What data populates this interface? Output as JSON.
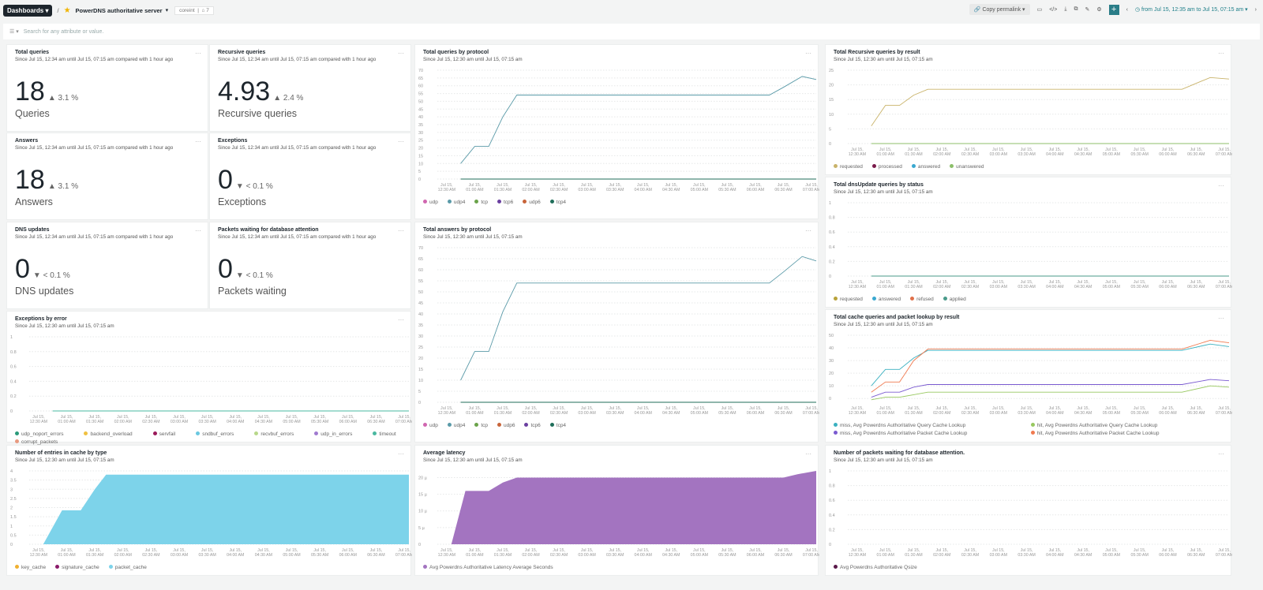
{
  "header": {
    "dashboards_label": "Dashboards",
    "separator": "/",
    "dashboard_title": "PowerDNS authoritative server",
    "account_tag": "coreint",
    "tag_count": "7",
    "copy_permalink": "Copy permalink",
    "time_range": "from Jul 15, 12:35 am to Jul 15, 07:15 am"
  },
  "filter": {
    "placeholder": "Search for any attribute or value."
  },
  "billboards": [
    {
      "title": "Total queries",
      "subtitle": "Since Jul 15, 12:34 am until Jul 15, 07:15 am compared with 1 hour ago",
      "value": "18",
      "delta": "3.1 %",
      "direction": "up",
      "label": "Queries"
    },
    {
      "title": "Recursive queries",
      "subtitle": "Since Jul 15, 12:34 am until Jul 15, 07:15 am compared with 1 hour ago",
      "value": "4.93",
      "delta": "2.4 %",
      "direction": "up",
      "label": "Recursive queries"
    },
    {
      "title": "Answers",
      "subtitle": "Since Jul 15, 12:34 am until Jul 15, 07:15 am compared with 1 hour ago",
      "value": "18",
      "delta": "3.1 %",
      "direction": "up",
      "label": "Answers"
    },
    {
      "title": "Exceptions",
      "subtitle": "Since Jul 15, 12:34 am until Jul 15, 07:15 am compared with 1 hour ago",
      "value": "0",
      "delta": "< 0.1 %",
      "direction": "down",
      "label": "Exceptions"
    },
    {
      "title": "DNS updates",
      "subtitle": "Since Jul 15, 12:34 am until Jul 15, 07:15 am compared with 1 hour ago",
      "value": "0",
      "delta": "< 0.1 %",
      "direction": "down",
      "label": "DNS updates"
    },
    {
      "title": "Packets waiting for database attention",
      "subtitle": "Since Jul 15, 12:34 am until Jul 15, 07:15 am compared with 1 hour ago",
      "value": "0",
      "delta": "< 0.1 %",
      "direction": "down",
      "label": "Packets waiting"
    }
  ],
  "time_axis": {
    "range": [
      "00:20",
      "07:05"
    ],
    "ticks": [
      "00:30",
      "01:00",
      "01:30",
      "02:00",
      "02:30",
      "03:00",
      "03:30",
      "04:00",
      "04:30",
      "05:00",
      "05:30",
      "06:00",
      "06:30",
      "07:00"
    ],
    "tick_labels": [
      "Jul 15, 12:30 AM",
      "Jul 15, 01:00 AM",
      "Jul 15, 01:30 AM",
      "Jul 15, 02:00 AM",
      "Jul 15, 02:30 AM",
      "Jul 15, 03:00 AM",
      "Jul 15, 03:30 AM",
      "Jul 15, 04:00 AM",
      "Jul 15, 04:30 AM",
      "Jul 15, 05:00 AM",
      "Jul 15, 05:30 AM",
      "Jul 15, 06:00 AM",
      "Jul 15, 06:30 AM",
      "Jul 15, 07:00 AM"
    ]
  },
  "chart_data": [
    {
      "id": "queries-protocol",
      "type": "line",
      "title": "Total queries by protocol",
      "subtitle": "Since Jul 15, 12:30 am until Jul 15, 07:15 am",
      "ylim": [
        0,
        70
      ],
      "yticks": [
        "0",
        "5",
        "10",
        "15",
        "20",
        "25",
        "30",
        "35",
        "40",
        "45",
        "50",
        "55",
        "60",
        "65",
        "70"
      ],
      "ytick_values": [
        0,
        5,
        10,
        15,
        20,
        25,
        30,
        35,
        40,
        45,
        50,
        55,
        60,
        65,
        70
      ],
      "series": [
        {
          "name": "udp",
          "color": "#d066b0",
          "points": []
        },
        {
          "name": "udp4",
          "color": "#5a9aa8",
          "points": [
            [
              "00:45",
              10
            ],
            [
              "01:00",
              21
            ],
            [
              "01:15",
              21
            ],
            [
              "01:30",
              40
            ],
            [
              "01:45",
              54
            ],
            [
              "06:15",
              54
            ],
            [
              "06:30",
              59
            ],
            [
              "06:50",
              66
            ],
            [
              "07:05",
              64
            ]
          ]
        },
        {
          "name": "tcp",
          "color": "#6aa34a",
          "points": []
        },
        {
          "name": "tcp6",
          "color": "#6a3fa0",
          "points": []
        },
        {
          "name": "udp6",
          "color": "#c8643a",
          "points": []
        },
        {
          "name": "tcp4",
          "color": "#1f6e5a",
          "points": [
            [
              "00:45",
              0
            ],
            [
              "07:05",
              0
            ]
          ]
        }
      ]
    },
    {
      "id": "recursive-result",
      "type": "line",
      "title": "Total Recursive queries by result",
      "subtitle": "Since Jul 15, 12:30 am until Jul 15, 07:15 am",
      "ylim": [
        0,
        25
      ],
      "yticks": [
        "0",
        "5",
        "10",
        "15",
        "20",
        "25"
      ],
      "ytick_values": [
        0,
        5,
        10,
        15,
        20,
        25
      ],
      "series": [
        {
          "name": "requested",
          "color": "#c9b36a",
          "points": [
            [
              "00:45",
              6
            ],
            [
              "01:00",
              13
            ],
            [
              "01:15",
              13
            ],
            [
              "01:30",
              16.5
            ],
            [
              "01:45",
              18.5
            ],
            [
              "06:15",
              18.5
            ],
            [
              "06:30",
              20.5
            ],
            [
              "06:45",
              22.5
            ],
            [
              "07:05",
              22
            ]
          ]
        },
        {
          "name": "processed",
          "color": "#7a1a4a",
          "points": []
        },
        {
          "name": "answered",
          "color": "#3aa8d0",
          "points": []
        },
        {
          "name": "unanswered",
          "color": "#8cbf6a",
          "points": [
            [
              "00:45",
              0
            ],
            [
              "07:05",
              0
            ]
          ]
        }
      ]
    },
    {
      "id": "dnsupdate-status",
      "type": "line",
      "title": "Total dnsUpdate queries by status",
      "subtitle": "Since Jul 15, 12:30 am until Jul 15, 07:15 am",
      "ylim": [
        0,
        1
      ],
      "yticks": [
        "0",
        "0.2",
        "0.4",
        "0.6",
        "0.8",
        "1"
      ],
      "ytick_values": [
        0,
        0.2,
        0.4,
        0.6,
        0.8,
        1
      ],
      "series": [
        {
          "name": "requested",
          "color": "#b8a23a",
          "points": []
        },
        {
          "name": "answered",
          "color": "#3aa8d0",
          "points": []
        },
        {
          "name": "refused",
          "color": "#e0704a",
          "points": []
        },
        {
          "name": "applied",
          "color": "#4a9a8a",
          "points": [
            [
              "00:45",
              0
            ],
            [
              "07:05",
              0
            ]
          ]
        }
      ]
    },
    {
      "id": "answers-protocol",
      "type": "line",
      "title": "Total answers by protocol",
      "subtitle": "Since Jul 15, 12:30 am until Jul 15, 07:15 am",
      "ylim": [
        0,
        70
      ],
      "yticks": [
        "0",
        "5",
        "10",
        "15",
        "20",
        "25",
        "30",
        "35",
        "40",
        "45",
        "50",
        "55",
        "60",
        "65",
        "70"
      ],
      "ytick_values": [
        0,
        5,
        10,
        15,
        20,
        25,
        30,
        35,
        40,
        45,
        50,
        55,
        60,
        65,
        70
      ],
      "series": [
        {
          "name": "udp",
          "color": "#d066b0",
          "points": []
        },
        {
          "name": "udp4",
          "color": "#5a9aa8",
          "points": [
            [
              "00:45",
              10
            ],
            [
              "01:00",
              23
            ],
            [
              "01:15",
              23
            ],
            [
              "01:30",
              41
            ],
            [
              "01:45",
              54
            ],
            [
              "06:15",
              54
            ],
            [
              "06:30",
              59
            ],
            [
              "06:50",
              66
            ],
            [
              "07:05",
              64
            ]
          ]
        },
        {
          "name": "tcp",
          "color": "#6aa34a",
          "points": []
        },
        {
          "name": "udp6",
          "color": "#c8643a",
          "points": []
        },
        {
          "name": "tcp6",
          "color": "#6a3fa0",
          "points": []
        },
        {
          "name": "tcp4",
          "color": "#1f6e5a",
          "points": [
            [
              "00:45",
              0
            ],
            [
              "07:05",
              0
            ]
          ]
        }
      ]
    },
    {
      "id": "exceptions-error",
      "type": "line",
      "title": "Exceptions by error",
      "subtitle": "Since Jul 15, 12:30 am until Jul 15, 07:15 am",
      "ylim": [
        0,
        1
      ],
      "yticks": [
        "0",
        "0.2",
        "0.4",
        "0.6",
        "0.8",
        "1"
      ],
      "ytick_values": [
        0,
        0.2,
        0.4,
        0.6,
        0.8,
        1
      ],
      "series": [
        {
          "name": "udp_noport_errors",
          "color": "#2a9a7a",
          "points": []
        },
        {
          "name": "backend_overload",
          "color": "#f0c040",
          "points": []
        },
        {
          "name": "servfail",
          "color": "#9a1a5a",
          "points": []
        },
        {
          "name": "sndbuf_errors",
          "color": "#6ac8e0",
          "points": []
        },
        {
          "name": "recvbuf_errors",
          "color": "#b8d88a",
          "points": []
        },
        {
          "name": "udp_in_errors",
          "color": "#a07ad0",
          "points": []
        },
        {
          "name": "timeout",
          "color": "#4ab8a0",
          "points": [
            [
              "00:45",
              0
            ],
            [
              "07:05",
              0
            ]
          ]
        },
        {
          "name": "corrupt_packets",
          "color": "#e89a80",
          "points": []
        }
      ]
    },
    {
      "id": "cache-lookup",
      "type": "line",
      "title": "Total cache queries and packet lookup by result",
      "subtitle": "Since Jul 15, 12:30 am until Jul 15, 07:15 am",
      "ylim": [
        -3,
        50
      ],
      "yticks": [
        "0",
        "10",
        "20",
        "30",
        "40",
        "50"
      ],
      "ytick_values": [
        0,
        10,
        20,
        30,
        40,
        50
      ],
      "series": [
        {
          "name": "miss, Avg Powerdns Authoritative Query Cache Lookup",
          "color": "#3ab0c0",
          "points": [
            [
              "00:45",
              10
            ],
            [
              "01:00",
              23
            ],
            [
              "01:15",
              23
            ],
            [
              "01:30",
              32
            ],
            [
              "01:45",
              38
            ],
            [
              "06:15",
              38
            ],
            [
              "06:45",
              43
            ],
            [
              "07:05",
              41
            ]
          ]
        },
        {
          "name": "hit, Avg Powerdns Authoritative Query Cache Lookup",
          "color": "#98c860",
          "points": [
            [
              "00:45",
              -1
            ],
            [
              "01:00",
              1
            ],
            [
              "01:15",
              1
            ],
            [
              "01:30",
              3
            ],
            [
              "01:45",
              5
            ],
            [
              "06:15",
              5
            ],
            [
              "06:45",
              10
            ],
            [
              "07:05",
              9
            ]
          ]
        },
        {
          "name": "miss, Avg Powerdns Authoritative Packet Cache Lookup",
          "color": "#7a5ad0",
          "points": [
            [
              "00:45",
              1
            ],
            [
              "01:00",
              5
            ],
            [
              "01:15",
              5
            ],
            [
              "01:30",
              9
            ],
            [
              "01:45",
              11
            ],
            [
              "06:15",
              11
            ],
            [
              "06:45",
              15
            ],
            [
              "07:05",
              14
            ]
          ]
        },
        {
          "name": "hit, Avg Powerdns Authoritative Packet Cache Lookup",
          "color": "#f07a50",
          "points": [
            [
              "00:45",
              5
            ],
            [
              "01:00",
              13
            ],
            [
              "01:15",
              13
            ],
            [
              "01:30",
              30
            ],
            [
              "01:45",
              39
            ],
            [
              "06:15",
              39
            ],
            [
              "06:45",
              46
            ],
            [
              "07:05",
              44
            ]
          ]
        }
      ]
    },
    {
      "id": "cache-entries",
      "type": "area",
      "title": "Number of entries in cache by type",
      "subtitle": "Since Jul 15, 12:30 am until Jul 15, 07:15 am",
      "ylim": [
        0,
        4
      ],
      "yticks": [
        "0",
        "0.5",
        "1",
        "1.5",
        "2",
        "2.5",
        "3",
        "3.5",
        "4"
      ],
      "ytick_values": [
        0,
        0.5,
        1,
        1.5,
        2,
        2.5,
        3,
        3.5,
        4
      ],
      "series": [
        {
          "name": "key_cache",
          "color": "#f0b030",
          "points": []
        },
        {
          "name": "signature_cache",
          "color": "#8a1a6a",
          "points": []
        },
        {
          "name": "packet_cache",
          "color": "#7dd3ea",
          "points": [
            [
              "00:35",
              0
            ],
            [
              "00:55",
              1.85
            ],
            [
              "01:15",
              1.85
            ],
            [
              "01:30",
              3
            ],
            [
              "01:42",
              3.8
            ],
            [
              "07:05",
              3.8
            ]
          ]
        }
      ]
    },
    {
      "id": "avg-latency",
      "type": "area",
      "title": "Average latency",
      "subtitle": "Since Jul 15, 12:30 am until Jul 15, 07:15 am",
      "ylim": [
        0,
        22
      ],
      "yticks": [
        "0",
        "5 µ",
        "10 µ",
        "15 µ",
        "20 µ"
      ],
      "ytick_values": [
        0,
        5,
        10,
        15,
        20
      ],
      "series": [
        {
          "name": "Avg Powerdns Authoritative Latency Average Seconds",
          "color": "#a374c0",
          "points": [
            [
              "00:35",
              0
            ],
            [
              "00:50",
              16
            ],
            [
              "01:15",
              16
            ],
            [
              "01:30",
              18.5
            ],
            [
              "01:45",
              20
            ],
            [
              "06:30",
              20
            ],
            [
              "06:45",
              21
            ],
            [
              "07:05",
              22
            ]
          ]
        }
      ]
    },
    {
      "id": "packets-waiting",
      "type": "line",
      "title": "Number of packets waiting for database attention.",
      "subtitle": "Since Jul 15, 12:30 am until Jul 15, 07:15 am",
      "ylim": [
        0,
        1
      ],
      "yticks": [
        "0",
        "0.2",
        "0.4",
        "0.6",
        "0.8",
        "1"
      ],
      "ytick_values": [
        0,
        0.2,
        0.4,
        0.6,
        0.8,
        1
      ],
      "series": [
        {
          "name": "Avg Powerdns Authoritative Qsize",
          "color": "#5a1a4a",
          "points": []
        }
      ]
    }
  ]
}
